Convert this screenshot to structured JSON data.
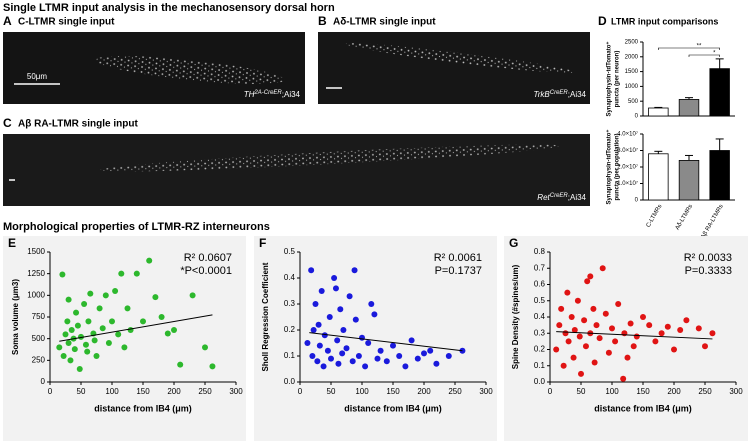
{
  "title": "Single LTMR input analysis in the mechanosensory dorsal horn",
  "section_title": "Morphological properties of LTMR-RZ interneurons",
  "panels": [
    {
      "letter": "A",
      "title": "C-LTMR single input",
      "scale": "50μm",
      "gene": "TH",
      "super": "2A-CreER",
      "rest": ";Ai34"
    },
    {
      "letter": "B",
      "title": "Aδ-LTMR single input",
      "gene": "TrkB",
      "super": "CreER",
      "rest": ";Ai34"
    },
    {
      "letter": "C",
      "title": "Aβ RA-LTMR single input",
      "gene": "Ret",
      "super": "CreER",
      "rest": ";Ai34"
    }
  ],
  "chart_data": [
    {
      "type": "bar",
      "panel_label": "D",
      "title": "LTMR input comparisons",
      "ylabel": [
        "Synaptophysin-tdTomato⁺",
        "puncta (per neuron)"
      ],
      "values": [
        270,
        560,
        1600
      ],
      "errors": [
        20,
        60,
        330
      ],
      "colors": [
        "#ffffff",
        "#8a8a8a",
        "#000000"
      ],
      "ylim": [
        0,
        2500
      ],
      "yticks": [
        0,
        500,
        1000,
        1500,
        2000,
        2500
      ],
      "annotations": [
        "**",
        "*"
      ]
    },
    {
      "type": "bar",
      "ylabel": [
        "Synaptophysin-tdTomato⁺",
        "puncta (per population)"
      ],
      "categories": [
        "C-LTMRs",
        "Aδ-LTMRs",
        "Aβ RA-LTMRs"
      ],
      "values": [
        28000000,
        24000000,
        30000000
      ],
      "errors": [
        1500000,
        3000000,
        7000000
      ],
      "colors": [
        "#ffffff",
        "#8a8a8a",
        "#000000"
      ],
      "ylim": [
        0,
        40000000
      ],
      "yticks": [
        0,
        {
          "value": 10000000,
          "label": "1.0×10⁷"
        },
        {
          "value": 20000000,
          "label": "2.0×10⁷"
        },
        {
          "value": 30000000,
          "label": "3.0×10⁷"
        },
        {
          "value": 40000000,
          "label": "4.0×10⁷"
        }
      ]
    },
    {
      "type": "scatter",
      "panel_label": "E",
      "ylabel": "Soma volume (μm3)",
      "xlabel": "distance from IB4 (μm)",
      "color": "#2db82d",
      "x": [
        15,
        20,
        22,
        25,
        28,
        30,
        33,
        35,
        38,
        40,
        42,
        45,
        48,
        50,
        55,
        58,
        60,
        62,
        65,
        70,
        72,
        75,
        80,
        85,
        90,
        95,
        100,
        105,
        110,
        115,
        120,
        125,
        130,
        140,
        150,
        160,
        170,
        180,
        190,
        200,
        210,
        230,
        250,
        262,
        30
      ],
      "values": [
        400,
        1240,
        300,
        550,
        700,
        450,
        250,
        600,
        500,
        380,
        800,
        650,
        150,
        520,
        900,
        430,
        350,
        700,
        1020,
        560,
        480,
        300,
        850,
        620,
        1000,
        450,
        700,
        1050,
        550,
        1250,
        400,
        850,
        600,
        1250,
        700,
        1400,
        980,
        750,
        560,
        600,
        200,
        1000,
        400,
        180,
        950
      ],
      "fit": {
        "x": [
          15,
          262
        ],
        "values": [
          470,
          775
        ]
      },
      "xlim": [
        0,
        300
      ],
      "xticks": [
        0,
        50,
        100,
        150,
        200,
        250,
        300
      ],
      "ylim": [
        0,
        1500
      ],
      "yticks": [
        0,
        250,
        500,
        750,
        1000,
        1250,
        1500
      ],
      "annotations": [
        "R² 0.0607",
        "*P<0.0001"
      ]
    },
    {
      "type": "scatter",
      "panel_label": "F",
      "ylabel": "Sholl Regression Coefficient",
      "xlabel": "distance from IB4 (μm)",
      "color": "#1a1adc",
      "x": [
        12,
        18,
        20,
        25,
        28,
        30,
        32,
        35,
        38,
        40,
        45,
        48,
        50,
        55,
        60,
        62,
        65,
        68,
        70,
        75,
        80,
        85,
        90,
        95,
        100,
        105,
        110,
        120,
        125,
        130,
        140,
        150,
        160,
        170,
        180,
        190,
        200,
        210,
        220,
        240,
        262,
        22,
        58,
        88,
        115
      ],
      "values": [
        0.15,
        0.43,
        0.1,
        0.3,
        0.08,
        0.22,
        0.14,
        0.35,
        0.06,
        0.18,
        0.12,
        0.25,
        0.09,
        0.4,
        0.16,
        0.07,
        0.28,
        0.11,
        0.2,
        0.13,
        0.33,
        0.08,
        0.24,
        0.1,
        0.17,
        0.06,
        0.15,
        0.26,
        0.09,
        0.12,
        0.08,
        0.14,
        0.1,
        0.06,
        0.16,
        0.09,
        0.11,
        0.12,
        0.07,
        0.1,
        0.12,
        0.2,
        0.36,
        0.43,
        0.3
      ],
      "fit": {
        "x": [
          15,
          262
        ],
        "values": [
          0.19,
          0.12
        ]
      },
      "xlim": [
        0,
        300
      ],
      "xticks": [
        0,
        50,
        100,
        150,
        200,
        250,
        300
      ],
      "ylim": [
        0,
        0.5
      ],
      "yticks": [
        {
          "value": 0,
          "label": "0.0"
        },
        0.1,
        0.2,
        0.3,
        0.4,
        0.5
      ],
      "annotations": [
        "R² 0.0061",
        "P=0.1737"
      ]
    },
    {
      "type": "scatter",
      "panel_label": "G",
      "ylabel": "Spine Density (#spines/um)",
      "xlabel": "distance from IB4 (μm)",
      "color": "#e01414",
      "x": [
        10,
        15,
        18,
        22,
        25,
        28,
        30,
        35,
        38,
        40,
        45,
        48,
        50,
        55,
        58,
        60,
        65,
        70,
        72,
        75,
        80,
        85,
        90,
        95,
        100,
        105,
        110,
        118,
        120,
        125,
        130,
        135,
        140,
        150,
        160,
        170,
        180,
        190,
        200,
        210,
        220,
        240,
        250,
        262,
        65
      ],
      "values": [
        0.2,
        0.35,
        0.45,
        0.1,
        0.3,
        0.55,
        0.25,
        0.4,
        0.15,
        0.32,
        0.5,
        0.28,
        0.05,
        0.38,
        0.22,
        0.62,
        0.3,
        0.45,
        0.12,
        0.35,
        0.27,
        0.7,
        0.42,
        0.18,
        0.33,
        0.25,
        0.48,
        0.02,
        0.3,
        0.15,
        0.36,
        0.22,
        0.28,
        0.4,
        0.35,
        0.25,
        0.3,
        0.34,
        0.2,
        0.32,
        0.38,
        0.33,
        0.22,
        0.3,
        0.65
      ],
      "fit": {
        "x": [
          10,
          262
        ],
        "values": [
          0.31,
          0.265
        ]
      },
      "xlim": [
        0,
        300
      ],
      "xticks": [
        0,
        50,
        100,
        150,
        200,
        250,
        300
      ],
      "ylim": [
        0,
        0.8
      ],
      "yticks": [
        {
          "value": 0,
          "label": "0.0"
        },
        0.1,
        0.2,
        0.3,
        0.4,
        0.5,
        0.6,
        0.7,
        0.8
      ],
      "annotations": [
        "R² 0.0033",
        "P=0.3333"
      ]
    }
  ]
}
